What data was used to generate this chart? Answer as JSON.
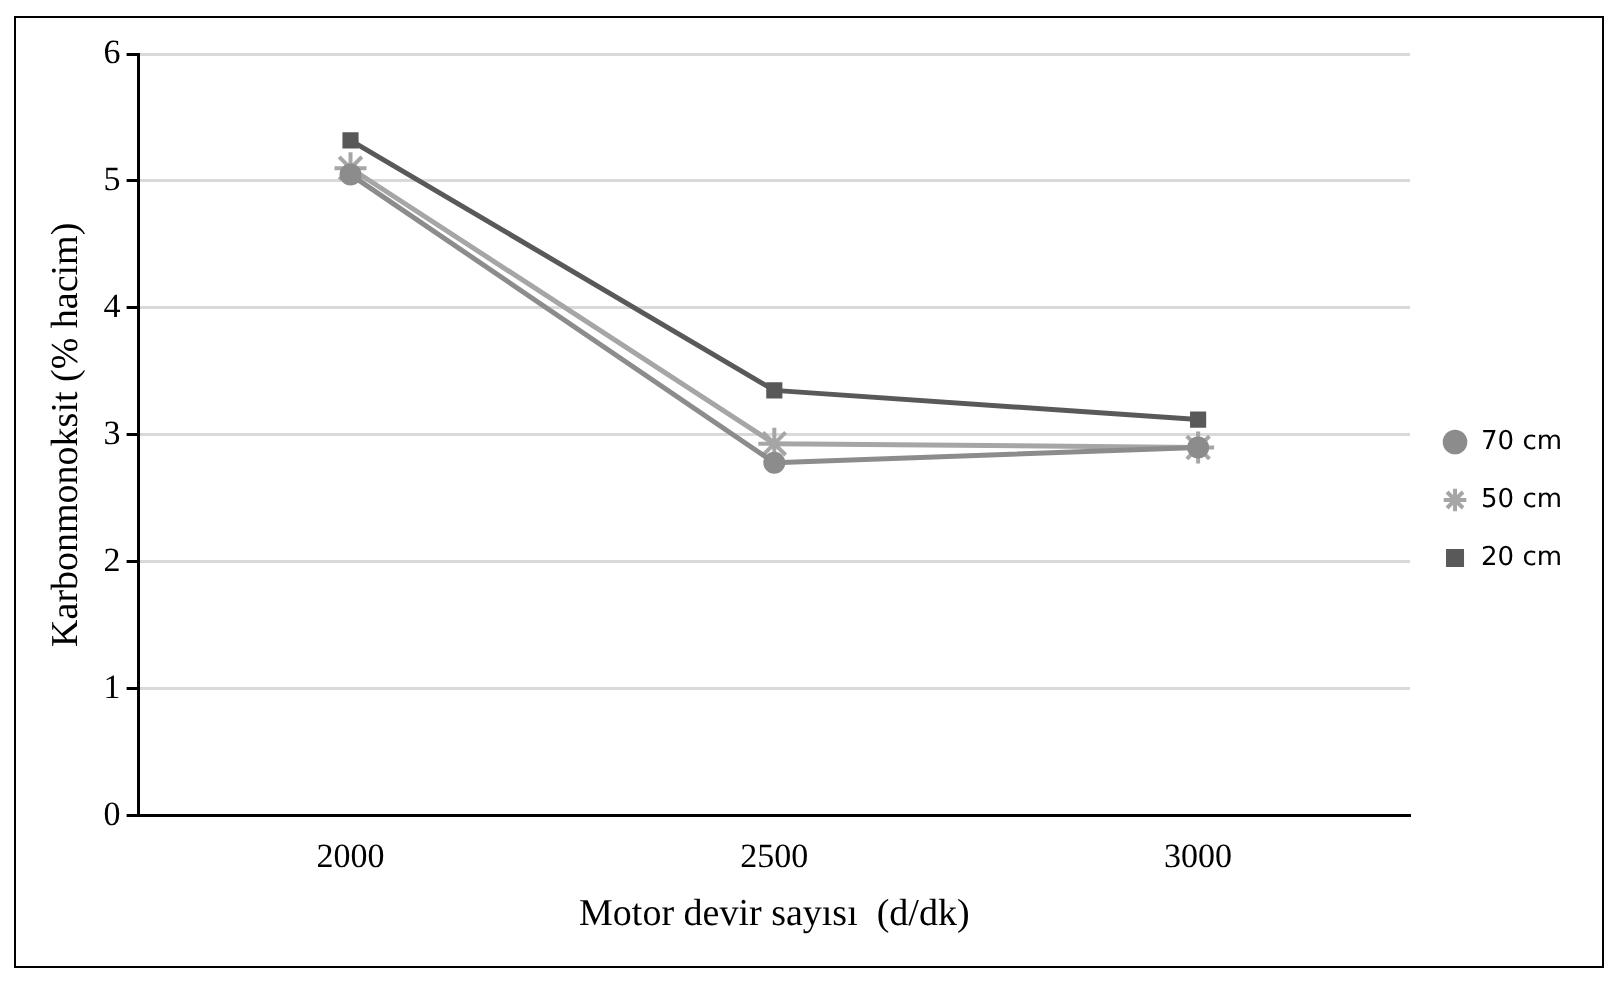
{
  "chart_data": {
    "type": "line",
    "xlabel": "Motor devir sayısı  (d/dk)",
    "ylabel": "Karbonmonoksit (% hacim)",
    "categories": [
      "2000",
      "2500",
      "3000"
    ],
    "series": [
      {
        "name": "20 cm",
        "color": "#595959",
        "marker": "square",
        "values": [
          5.32,
          3.35,
          3.12
        ]
      },
      {
        "name": "50 cm",
        "color": "#a6a6a6",
        "marker": "cross",
        "values": [
          5.1,
          2.93,
          2.9
        ]
      },
      {
        "name": "70 cm",
        "color": "#8c8c8c",
        "marker": "circle",
        "values": [
          5.05,
          2.78,
          2.9
        ]
      }
    ],
    "ylim": [
      0,
      6
    ],
    "yticks": [
      0,
      1,
      2,
      3,
      4,
      5,
      6
    ],
    "grid": "y",
    "legend": "right",
    "line_style": "solid"
  }
}
